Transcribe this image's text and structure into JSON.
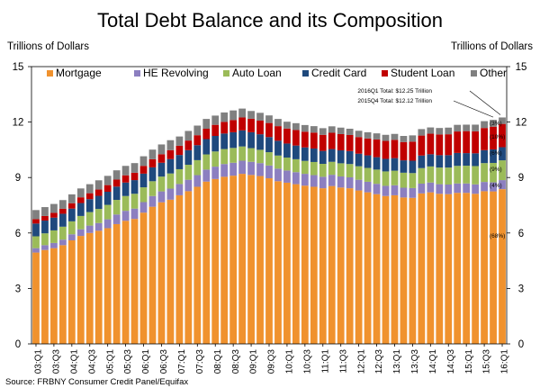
{
  "chart_data": {
    "type": "bar",
    "stacked": true,
    "title": "Total Debt Balance and its Composition",
    "ylabel_left": "Trillions of Dollars",
    "ylabel_right": "Trillions of Dollars",
    "ylim": [
      0,
      15
    ],
    "yticks": [
      0,
      3,
      6,
      9,
      12,
      15
    ],
    "grid": false,
    "legend_position": "top",
    "categories": [
      "03:Q1",
      "03:Q2",
      "03:Q3",
      "03:Q4",
      "04:Q1",
      "04:Q2",
      "04:Q3",
      "04:Q4",
      "05:Q1",
      "05:Q2",
      "05:Q3",
      "05:Q4",
      "06:Q1",
      "06:Q2",
      "06:Q3",
      "06:Q4",
      "07:Q1",
      "07:Q2",
      "07:Q3",
      "07:Q4",
      "08:Q1",
      "08:Q2",
      "08:Q3",
      "08:Q4",
      "09:Q1",
      "09:Q2",
      "09:Q3",
      "09:Q4",
      "10:Q1",
      "10:Q2",
      "10:Q3",
      "10:Q4",
      "11:Q1",
      "11:Q2",
      "11:Q3",
      "11:Q4",
      "12:Q1",
      "12:Q2",
      "12:Q3",
      "12:Q4",
      "13:Q1",
      "13:Q2",
      "13:Q3",
      "13:Q4",
      "14:Q1",
      "14:Q2",
      "14:Q3",
      "14:Q4",
      "15:Q1",
      "15:Q2",
      "15:Q3",
      "15:Q4",
      "16:Q1"
    ],
    "xtick_labels": [
      "03:Q1",
      "03:Q3",
      "04:Q1",
      "04:Q3",
      "05:Q1",
      "05:Q3",
      "06:Q1",
      "06:Q3",
      "07:Q1",
      "07:Q3",
      "08:Q1",
      "08:Q3",
      "09:Q1",
      "09:Q3",
      "10:Q1",
      "10:Q3",
      "11:Q1",
      "11:Q3",
      "12:Q1",
      "12:Q3",
      "13:Q1",
      "13:Q3",
      "14:Q1",
      "14:Q3",
      "15:Q1",
      "15:Q3",
      "16:Q1"
    ],
    "series": [
      {
        "name": "Mortgage",
        "color": "#F0922E",
        "values": [
          4.94,
          5.08,
          5.18,
          5.34,
          5.6,
          5.84,
          6.0,
          6.12,
          6.26,
          6.48,
          6.66,
          6.76,
          7.1,
          7.42,
          7.66,
          7.8,
          8.04,
          8.26,
          8.5,
          8.78,
          8.92,
          9.04,
          9.1,
          9.2,
          9.14,
          9.08,
          8.96,
          8.8,
          8.72,
          8.64,
          8.56,
          8.5,
          8.42,
          8.54,
          8.46,
          8.42,
          8.3,
          8.2,
          8.1,
          8.0,
          8.04,
          7.92,
          7.9,
          8.14,
          8.2,
          8.12,
          8.1,
          8.17,
          8.17,
          8.12,
          8.26,
          8.25,
          8.37
        ]
      },
      {
        "name": "HE Revolving",
        "color": "#8C7FC0",
        "values": [
          0.24,
          0.26,
          0.28,
          0.3,
          0.33,
          0.36,
          0.4,
          0.42,
          0.48,
          0.52,
          0.54,
          0.56,
          0.57,
          0.58,
          0.59,
          0.6,
          0.61,
          0.62,
          0.63,
          0.65,
          0.67,
          0.69,
          0.7,
          0.71,
          0.71,
          0.7,
          0.69,
          0.68,
          0.66,
          0.65,
          0.64,
          0.63,
          0.62,
          0.61,
          0.6,
          0.59,
          0.58,
          0.57,
          0.56,
          0.55,
          0.54,
          0.53,
          0.53,
          0.53,
          0.53,
          0.52,
          0.52,
          0.51,
          0.51,
          0.51,
          0.5,
          0.49,
          0.49
        ]
      },
      {
        "name": "Auto Loan",
        "color": "#9BBB59",
        "values": [
          0.64,
          0.64,
          0.68,
          0.7,
          0.7,
          0.72,
          0.73,
          0.76,
          0.78,
          0.79,
          0.8,
          0.8,
          0.8,
          0.8,
          0.8,
          0.82,
          0.8,
          0.81,
          0.81,
          0.82,
          0.82,
          0.81,
          0.8,
          0.77,
          0.74,
          0.72,
          0.72,
          0.71,
          0.7,
          0.7,
          0.7,
          0.71,
          0.7,
          0.7,
          0.71,
          0.72,
          0.73,
          0.75,
          0.77,
          0.78,
          0.79,
          0.81,
          0.81,
          0.84,
          0.87,
          0.9,
          0.92,
          0.95,
          0.96,
          0.99,
          1.02,
          1.05,
          1.07
        ]
      },
      {
        "name": "Credit Card",
        "color": "#1F497D",
        "values": [
          0.69,
          0.69,
          0.69,
          0.7,
          0.69,
          0.7,
          0.7,
          0.71,
          0.71,
          0.72,
          0.73,
          0.74,
          0.74,
          0.75,
          0.75,
          0.78,
          0.77,
          0.79,
          0.81,
          0.83,
          0.84,
          0.84,
          0.85,
          0.87,
          0.86,
          0.84,
          0.82,
          0.8,
          0.76,
          0.74,
          0.73,
          0.73,
          0.7,
          0.69,
          0.7,
          0.7,
          0.68,
          0.68,
          0.67,
          0.68,
          0.68,
          0.67,
          0.67,
          0.68,
          0.66,
          0.67,
          0.67,
          0.7,
          0.68,
          0.69,
          0.7,
          0.73,
          0.71
        ]
      },
      {
        "name": "Student Loan",
        "color": "#C00000",
        "values": [
          0.24,
          0.25,
          0.26,
          0.27,
          0.29,
          0.31,
          0.32,
          0.34,
          0.36,
          0.38,
          0.39,
          0.4,
          0.42,
          0.44,
          0.46,
          0.48,
          0.5,
          0.52,
          0.54,
          0.56,
          0.6,
          0.63,
          0.66,
          0.7,
          0.73,
          0.74,
          0.76,
          0.79,
          0.81,
          0.84,
          0.85,
          0.86,
          0.87,
          0.88,
          0.88,
          0.87,
          0.9,
          0.91,
          0.96,
          0.97,
          0.99,
          0.99,
          1.03,
          1.08,
          1.11,
          1.12,
          1.13,
          1.16,
          1.19,
          1.19,
          1.2,
          1.23,
          1.26
        ]
      },
      {
        "name": "Other",
        "color": "#808080",
        "values": [
          0.49,
          0.48,
          0.48,
          0.47,
          0.48,
          0.48,
          0.49,
          0.5,
          0.5,
          0.5,
          0.51,
          0.52,
          0.52,
          0.52,
          0.53,
          0.54,
          0.5,
          0.52,
          0.52,
          0.53,
          0.5,
          0.51,
          0.52,
          0.48,
          0.42,
          0.42,
          0.41,
          0.39,
          0.37,
          0.37,
          0.36,
          0.35,
          0.36,
          0.35,
          0.35,
          0.34,
          0.34,
          0.34,
          0.33,
          0.33,
          0.32,
          0.33,
          0.34,
          0.35,
          0.34,
          0.35,
          0.36,
          0.36,
          0.35,
          0.36,
          0.37,
          0.37,
          0.35
        ]
      }
    ],
    "annotations": [
      "2016Q1 Total: $12.25 Trillion",
      "2015Q4 Total: $12.12 Trillion"
    ],
    "share_labels": [
      "(3%)",
      "(10%)",
      "(6%)",
      "(9%)",
      "(4%)",
      "(68%)"
    ],
    "source": "Source: FRBNY Consumer Credit Panel/Equifax"
  }
}
